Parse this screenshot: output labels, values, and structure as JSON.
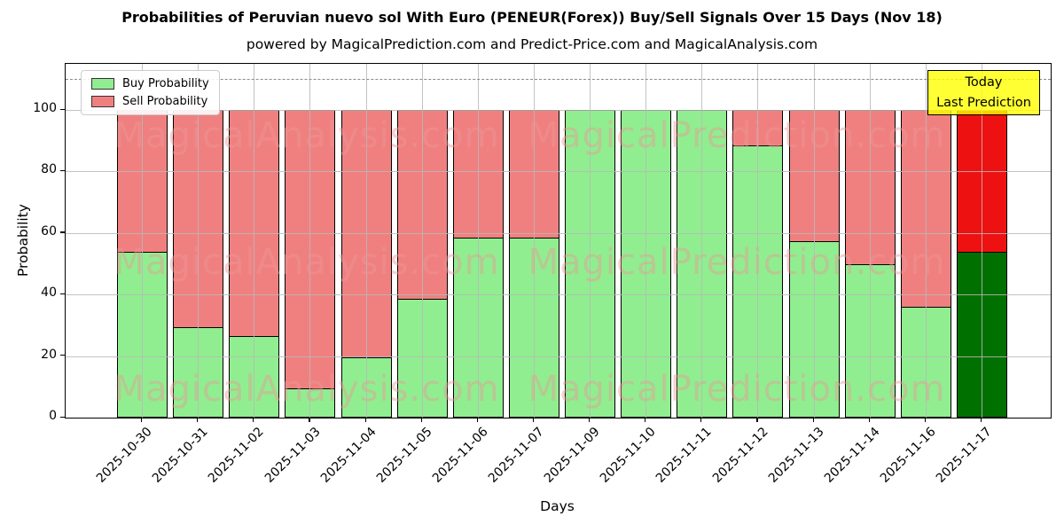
{
  "chart_data": {
    "type": "bar",
    "stacked": true,
    "title": "Probabilities of Peruvian nuevo sol With Euro (PENEUR(Forex)) Buy/Sell Signals Over 15 Days (Nov 18)",
    "subtitle": "powered by MagicalPrediction.com and Predict-Price.com and MagicalAnalysis.com",
    "xlabel": "Days",
    "ylabel": "Probability",
    "categories": [
      "2025-10-30",
      "2025-10-31",
      "2025-11-02",
      "2025-11-03",
      "2025-11-04",
      "2025-11-05",
      "2025-11-06",
      "2025-11-07",
      "2025-11-09",
      "2025-11-10",
      "2025-11-11",
      "2025-11-12",
      "2025-11-13",
      "2025-11-14",
      "2025-11-16",
      "2025-11-17"
    ],
    "series": [
      {
        "name": "Buy Probability",
        "color": "#90EE90",
        "values": [
          54,
          29.5,
          26.5,
          9.5,
          19.5,
          38.5,
          58.5,
          58.5,
          100,
          100,
          100,
          88.5,
          57.5,
          50,
          36,
          54
        ]
      },
      {
        "name": "Sell Probability",
        "color": "#F08080",
        "values": [
          46,
          70.5,
          73.5,
          90.5,
          80.5,
          61.5,
          41.5,
          41.5,
          0,
          0,
          0,
          11.5,
          42.5,
          50,
          64,
          46
        ]
      }
    ],
    "today": {
      "index": 15,
      "buy_color": "#007000",
      "sell_color": "#EE1111"
    },
    "ylim": [
      0,
      115
    ],
    "yticks": [
      0,
      20,
      40,
      60,
      80,
      100
    ],
    "dashed_line_y": 110,
    "grid": true,
    "legend_position": "top-left"
  },
  "annotation": {
    "line1": "Today",
    "line2": "Last Prediction",
    "bg_color": "#FFFF00"
  },
  "watermarks": {
    "left": "MagicalAnalysis.com",
    "right": "MagicalPrediction.com",
    "rows": 3
  },
  "colors": {
    "grid": "#b9b9b9",
    "dashed": "#8a8a8a",
    "bar_edge": "#000000",
    "watermark": "rgba(235,150,150,0.45)"
  }
}
